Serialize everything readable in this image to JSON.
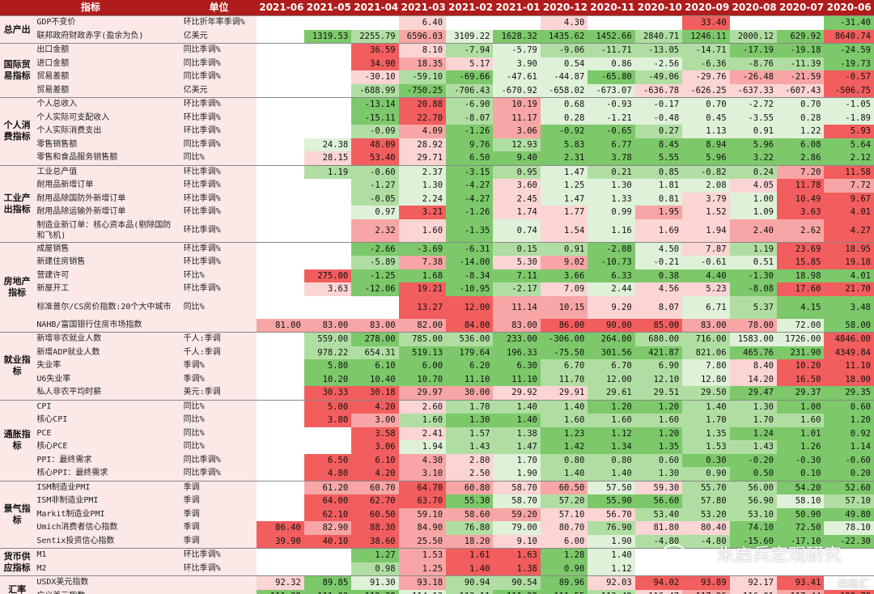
{
  "header": {
    "indicator": "指标",
    "unit": "单位",
    "dates": [
      "2021-06",
      "2021-05",
      "2021-04",
      "2021-03",
      "2021-02",
      "2021-01",
      "2020-12",
      "2020-11",
      "2020-10",
      "2020-09",
      "2020-08",
      "2020-07",
      "2020-06"
    ]
  },
  "colors": {
    "header_bg": "#b01c1c",
    "label_bg": "#fbe9e7",
    "strong_red": "#f25d5d",
    "mid_red": "#f7a5a5",
    "light_red": "#fbd4d4",
    "strong_green": "#7cc86a",
    "mid_green": "#b0dea2",
    "light_green": "#dff1d8"
  },
  "groups": [
    {
      "category": "总产出",
      "rows": [
        {
          "indicator": "GDP不变价",
          "unit": "环比折年率季调%",
          "values": [
            "",
            "",
            "",
            "6.40",
            "",
            "",
            "4.30",
            "",
            "",
            "33.40",
            "",
            "",
            "-31.40"
          ]
        },
        {
          "indicator": "联邦政府财政赤字(盈余为负)",
          "unit": "亿美元",
          "values": [
            "",
            "1319.53",
            "2255.79",
            "6596.03",
            "3109.22",
            "1628.32",
            "1435.62",
            "1452.66",
            "2840.71",
            "1246.11",
            "2000.12",
            "629.92",
            "8640.74"
          ]
        }
      ]
    },
    {
      "category": "国际贸易指标",
      "rows": [
        {
          "indicator": "出口金额",
          "unit": "同比季调%",
          "values": [
            "",
            "",
            "36.59",
            "8.10",
            "-7.94",
            "-5.79",
            "-9.06",
            "-11.71",
            "-13.05",
            "-14.71",
            "-17.19",
            "-19.18",
            "-24.59"
          ]
        },
        {
          "indicator": "进口金额",
          "unit": "同比季调%",
          "values": [
            "",
            "",
            "34.90",
            "18.35",
            "5.17",
            "3.90",
            "0.54",
            "0.86",
            "-2.56",
            "-6.36",
            "-8.76",
            "-11.39",
            "-19.73"
          ]
        },
        {
          "indicator": "贸易差额",
          "unit": "同比季调%",
          "values": [
            "",
            "",
            "-30.10",
            "-59.10",
            "-69.66",
            "-47.61",
            "-44.87",
            "-65.80",
            "-49.06",
            "-29.76",
            "-26.48",
            "-21.59",
            "-0.57"
          ]
        },
        {
          "indicator": "贸易差额",
          "unit": "亿美元",
          "values": [
            "",
            "",
            "-688.99",
            "-750.25",
            "-706.43",
            "-670.92",
            "-658.02",
            "-673.07",
            "-636.78",
            "-626.25",
            "-637.33",
            "-607.43",
            "-506.75"
          ]
        }
      ]
    },
    {
      "category": "个人消费指标",
      "rows": [
        {
          "indicator": "个人总收入",
          "unit": "环比季调%",
          "values": [
            "",
            "",
            "-13.14",
            "20.88",
            "-6.90",
            "10.19",
            "0.68",
            "-0.93",
            "-0.17",
            "0.70",
            "-2.72",
            "0.70",
            "-1.05"
          ]
        },
        {
          "indicator": "个人实际可支配收入",
          "unit": "环比季调%",
          "values": [
            "",
            "",
            "-15.11",
            "22.70",
            "-8.07",
            "11.17",
            "0.28",
            "-1.21",
            "-0.48",
            "0.45",
            "-3.55",
            "0.28",
            "-1.89"
          ]
        },
        {
          "indicator": "个人实际消费支出",
          "unit": "环比季调%",
          "values": [
            "",
            "",
            "-0.09",
            "4.09",
            "-1.26",
            "3.06",
            "-0.92",
            "-0.65",
            "0.27",
            "1.13",
            "0.91",
            "1.22",
            "5.93"
          ]
        },
        {
          "indicator": "零售销售额",
          "unit": "同比季调%",
          "values": [
            "",
            "24.38",
            "48.09",
            "28.92",
            "9.76",
            "12.93",
            "5.83",
            "6.77",
            "8.45",
            "8.94",
            "5.96",
            "6.08",
            "5.64"
          ]
        },
        {
          "indicator": "零售和食品服务销售额",
          "unit": "同比%",
          "values": [
            "",
            "28.15",
            "53.40",
            "29.71",
            "6.50",
            "9.40",
            "2.31",
            "3.78",
            "5.55",
            "5.96",
            "3.22",
            "2.86",
            "2.12"
          ]
        }
      ]
    },
    {
      "category": "工业产出指标",
      "rows": [
        {
          "indicator": "工业总产值",
          "unit": "环比季调%",
          "values": [
            "",
            "1.19",
            "-0.60",
            "2.37",
            "-3.15",
            "0.95",
            "1.47",
            "0.21",
            "0.85",
            "-0.82",
            "0.24",
            "7.20",
            "11.58"
          ]
        },
        {
          "indicator": "耐用品新增订单",
          "unit": "环比季调%",
          "values": [
            "",
            "",
            "-1.27",
            "1.30",
            "-4.27",
            "3.60",
            "1.25",
            "1.30",
            "1.81",
            "2.08",
            "4.05",
            "11.78",
            "7.72"
          ]
        },
        {
          "indicator": "耐用品除国防外新增订单",
          "unit": "环比季调%",
          "values": [
            "",
            "",
            "-0.05",
            "2.24",
            "-4.27",
            "2.45",
            "1.47",
            "1.33",
            "0.81",
            "3.79",
            "1.00",
            "10.49",
            "9.67"
          ]
        },
        {
          "indicator": "耐用品除运输外新增订单",
          "unit": "环比季调%",
          "values": [
            "",
            "",
            "0.97",
            "3.21",
            "-1.26",
            "1.74",
            "1.77",
            "0.99",
            "1.95",
            "1.52",
            "1.09",
            "3.63",
            "4.01"
          ]
        },
        {
          "indicator": "制造业新订单：核心资本品(剔除国防和飞机)",
          "unit": "环比季调%",
          "values": [
            "",
            "",
            "2.32",
            "1.60",
            "-1.35",
            "0.74",
            "1.54",
            "1.16",
            "1.69",
            "1.94",
            "2.40",
            "2.62",
            "4.27"
          ]
        }
      ]
    },
    {
      "category": "房地产指标",
      "rows": [
        {
          "indicator": "成屋销售",
          "unit": "环比季调%",
          "values": [
            "",
            "",
            "-2.66",
            "-3.69",
            "-6.31",
            "0.15",
            "0.91",
            "-2.08",
            "4.50",
            "7.87",
            "1.19",
            "23.69",
            "18.95"
          ]
        },
        {
          "indicator": "新建住房销售",
          "unit": "环比季调%",
          "values": [
            "",
            "",
            "-5.89",
            "7.38",
            "-14.00",
            "5.30",
            "9.02",
            "-10.73",
            "-0.21",
            "-0.61",
            "0.51",
            "15.85",
            "19.18"
          ]
        },
        {
          "indicator": "营建许可",
          "unit": "环比%",
          "values": [
            "",
            "275.00",
            "-1.25",
            "1.68",
            "-8.34",
            "7.11",
            "3.66",
            "6.33",
            "0.38",
            "4.40",
            "-1.30",
            "18.98",
            "4.01"
          ]
        },
        {
          "indicator": "新屋开工",
          "unit": "环比季调%",
          "values": [
            "",
            "3.63",
            "-12.06",
            "19.21",
            "-10.95",
            "-2.17",
            "7.09",
            "2.44",
            "4.56",
            "5.23",
            "-8.08",
            "17.60",
            "21.70"
          ]
        },
        {
          "indicator": "标准普尔/CS房价指数:20个大中城市",
          "unit": "同比%",
          "values": [
            "",
            "",
            "",
            "13.27",
            "12.00",
            "11.14",
            "10.15",
            "9.20",
            "8.07",
            "6.71",
            "5.37",
            "4.15",
            "3.48"
          ]
        },
        {
          "indicator": "NAHB/富国银行住房市场指数",
          "unit": "",
          "values": [
            "81.00",
            "83.00",
            "83.00",
            "82.00",
            "84.00",
            "83.00",
            "86.00",
            "90.00",
            "85.00",
            "83.00",
            "78.00",
            "72.00",
            "58.00"
          ]
        }
      ]
    },
    {
      "category": "就业指标",
      "rows": [
        {
          "indicator": "新增非农就业人数",
          "unit": "千人:季调",
          "values": [
            "",
            "559.00",
            "278.00",
            "785.00",
            "536.00",
            "233.00",
            "-306.00",
            "264.00",
            "680.00",
            "716.00",
            "1583.00",
            "1726.00",
            "4846.00"
          ]
        },
        {
          "indicator": "新增ADP就业人数",
          "unit": "千人:季调",
          "values": [
            "",
            "978.22",
            "654.31",
            "519.13",
            "179.64",
            "196.33",
            "-75.50",
            "301.56",
            "421.87",
            "821.06",
            "465.76",
            "231.90",
            "4349.84"
          ]
        },
        {
          "indicator": "失业率",
          "unit": "季调%",
          "values": [
            "",
            "5.80",
            "6.10",
            "6.00",
            "6.20",
            "6.30",
            "6.70",
            "6.70",
            "6.90",
            "7.80",
            "8.40",
            "10.20",
            "11.10"
          ]
        },
        {
          "indicator": "U6失业率",
          "unit": "季调%",
          "values": [
            "",
            "10.20",
            "10.40",
            "10.70",
            "11.10",
            "11.10",
            "11.70",
            "12.00",
            "12.10",
            "12.80",
            "14.20",
            "16.50",
            "18.00"
          ]
        },
        {
          "indicator": "私人非农平均时薪",
          "unit": "美元:季调",
          "values": [
            "",
            "30.33",
            "30.18",
            "29.97",
            "30.00",
            "29.92",
            "29.91",
            "29.61",
            "29.51",
            "29.50",
            "29.47",
            "29.37",
            "29.35"
          ]
        }
      ]
    },
    {
      "category": "通胀指标",
      "rows": [
        {
          "indicator": "CPI",
          "unit": "同比%",
          "values": [
            "",
            "5.00",
            "4.20",
            "2.60",
            "1.70",
            "1.40",
            "1.40",
            "1.20",
            "1.20",
            "1.40",
            "1.30",
            "1.00",
            "0.60"
          ]
        },
        {
          "indicator": "核心CPI",
          "unit": "同比%",
          "values": [
            "",
            "3.80",
            "3.00",
            "1.60",
            "1.30",
            "1.40",
            "1.60",
            "1.60",
            "1.60",
            "1.70",
            "1.70",
            "1.60",
            "1.20"
          ]
        },
        {
          "indicator": "PCE",
          "unit": "同比%",
          "values": [
            "",
            "",
            "3.58",
            "2.41",
            "1.57",
            "1.38",
            "1.23",
            "1.12",
            "1.20",
            "1.35",
            "1.24",
            "1.01",
            "0.92"
          ]
        },
        {
          "indicator": "核心PCE",
          "unit": "同比%",
          "values": [
            "",
            "",
            "3.06",
            "1.94",
            "1.43",
            "1.47",
            "1.42",
            "1.34",
            "1.35",
            "1.53",
            "1.43",
            "1.26",
            "1.14"
          ]
        },
        {
          "indicator": "PPI：最终需求",
          "unit": "同比季调%",
          "values": [
            "",
            "6.50",
            "6.10",
            "4.30",
            "2.80",
            "1.70",
            "0.80",
            "0.80",
            "0.60",
            "0.30",
            "-0.20",
            "-0.30",
            "-0.60"
          ]
        },
        {
          "indicator": "核心PPI：最终需求",
          "unit": "同比季调%",
          "values": [
            "",
            "4.80",
            "4.20",
            "3.10",
            "2.50",
            "1.90",
            "1.40",
            "1.40",
            "1.30",
            "0.90",
            "0.50",
            "0.10",
            "0.20"
          ]
        }
      ]
    },
    {
      "category": "景气指标",
      "rows": [
        {
          "indicator": "ISM制造业PMI",
          "unit": "季调",
          "values": [
            "",
            "61.20",
            "60.70",
            "64.70",
            "60.80",
            "58.70",
            "60.50",
            "57.50",
            "59.30",
            "55.70",
            "56.00",
            "54.20",
            "52.60"
          ]
        },
        {
          "indicator": "ISM非制造业PMI",
          "unit": "季调",
          "values": [
            "",
            "64.00",
            "62.70",
            "63.70",
            "55.30",
            "58.70",
            "57.20",
            "55.90",
            "56.60",
            "57.80",
            "56.90",
            "58.10",
            "57.10"
          ]
        },
        {
          "indicator": "Markit制造业PMI",
          "unit": "季调",
          "values": [
            "",
            "62.10",
            "60.50",
            "59.10",
            "58.60",
            "59.20",
            "57.10",
            "56.70",
            "53.40",
            "53.20",
            "53.10",
            "50.90",
            "49.80"
          ]
        },
        {
          "indicator": "Umich消费者信心指数",
          "unit": "季调",
          "values": [
            "86.40",
            "82.90",
            "88.30",
            "84.90",
            "76.80",
            "79.00",
            "80.70",
            "76.90",
            "81.80",
            "80.40",
            "74.10",
            "72.50",
            "78.10"
          ]
        },
        {
          "indicator": "Sentix投资信心指数",
          "unit": "季调",
          "values": [
            "39.90",
            "40.10",
            "38.60",
            "25.50",
            "18.20",
            "9.10",
            "6.00",
            "1.90",
            "-4.80",
            "-4.80",
            "-15.60",
            "-17.10",
            "-22.30"
          ]
        }
      ]
    },
    {
      "category": "货币供应指标",
      "rows": [
        {
          "indicator": "M1",
          "unit": "环比季调%",
          "values": [
            "",
            "",
            "1.27",
            "1.53",
            "1.61",
            "1.63",
            "1.28",
            "1.40",
            "",
            "",
            "",
            "",
            ""
          ]
        },
        {
          "indicator": "M2",
          "unit": "环比季调%",
          "values": [
            "",
            "",
            "0.98",
            "1.25",
            "1.40",
            "1.38",
            "0.90",
            "1.12",
            "",
            "",
            "",
            "",
            ""
          ]
        }
      ]
    },
    {
      "category": "汇率",
      "rows": [
        {
          "indicator": "USDX美元指数",
          "unit": "",
          "values": [
            "92.32",
            "89.85",
            "91.30",
            "93.18",
            "90.94",
            "90.54",
            "89.96",
            "92.03",
            "94.02",
            "93.89",
            "92.17",
            "93.41",
            ""
          ]
        },
        {
          "indicator": "广义美元指数",
          "unit": "",
          "values": [
            "111.38",
            "111.03",
            "112.38",
            "114.13",
            "113.11",
            "111.22",
            "111.55",
            "113.49",
            "116.47",
            "117.26",
            "116.01",
            "117.44",
            "120.70"
          ]
        }
      ]
    }
  ],
  "watermark": {
    "text": "朱启兵宏观研究",
    "source": "格隆汇"
  }
}
